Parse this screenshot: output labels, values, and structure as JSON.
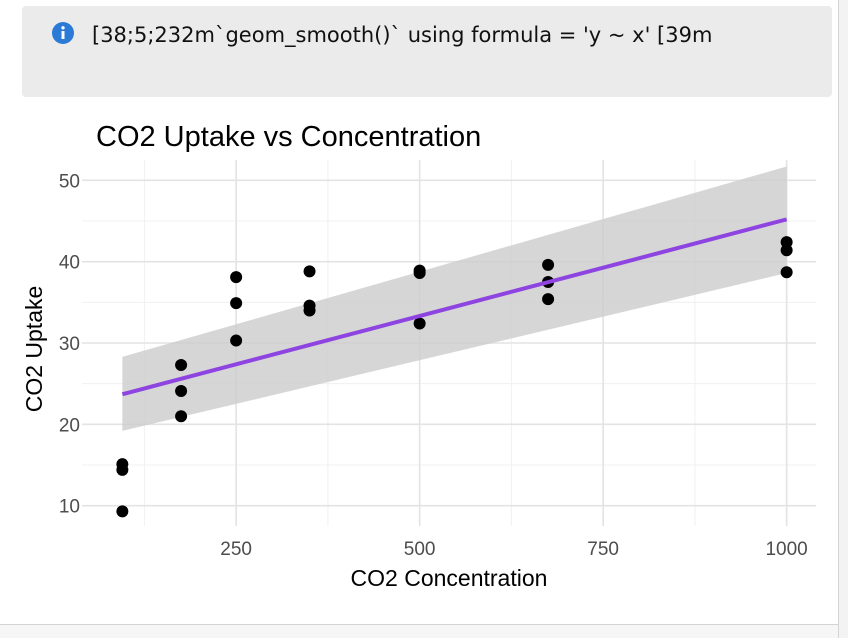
{
  "message": {
    "icon": "info-circle-icon",
    "icon_color": "#2a7ad6",
    "text": "[38;5;232m`geom_smooth()` using formula = 'y ~ x' [39m"
  },
  "chart_data": {
    "type": "scatter",
    "title": "CO2 Uptake vs Concentration",
    "xlabel": "CO2 Concentration",
    "ylabel": "CO2 Uptake",
    "xlim": [
      40,
      1040
    ],
    "ylim": [
      7.5,
      52.5
    ],
    "x_ticks": [
      250,
      500,
      750,
      1000
    ],
    "y_ticks": [
      10,
      20,
      30,
      40,
      50
    ],
    "grid": true,
    "points": [
      {
        "x": 95,
        "y": 15.1
      },
      {
        "x": 95,
        "y": 14.4
      },
      {
        "x": 95,
        "y": 9.3
      },
      {
        "x": 175,
        "y": 27.3
      },
      {
        "x": 175,
        "y": 24.1
      },
      {
        "x": 175,
        "y": 21.0
      },
      {
        "x": 250,
        "y": 38.1
      },
      {
        "x": 250,
        "y": 34.9
      },
      {
        "x": 250,
        "y": 30.3
      },
      {
        "x": 350,
        "y": 38.8
      },
      {
        "x": 350,
        "y": 34.6
      },
      {
        "x": 350,
        "y": 34.0
      },
      {
        "x": 500,
        "y": 38.9
      },
      {
        "x": 500,
        "y": 38.6
      },
      {
        "x": 500,
        "y": 32.4
      },
      {
        "x": 675,
        "y": 39.6
      },
      {
        "x": 675,
        "y": 37.5
      },
      {
        "x": 675,
        "y": 35.4
      },
      {
        "x": 1000,
        "y": 42.4
      },
      {
        "x": 1000,
        "y": 41.4
      },
      {
        "x": 1000,
        "y": 38.7
      }
    ],
    "trend": {
      "method": "lm",
      "color": "#8e44e0",
      "band_color": "#cccccc",
      "x": [
        95,
        1000
      ],
      "y": [
        23.7,
        45.2
      ],
      "lower": [
        19.2,
        38.6
      ],
      "upper": [
        28.3,
        51.7
      ]
    }
  }
}
